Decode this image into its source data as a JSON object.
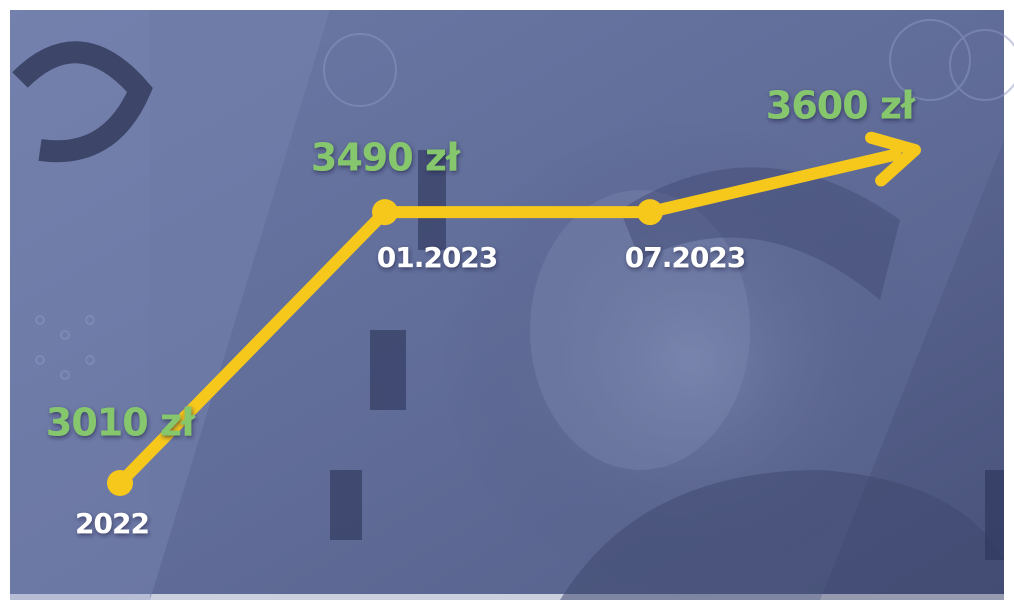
{
  "chart_data": {
    "type": "line",
    "categories": [
      "2022",
      "01.2023",
      "07.2023",
      null
    ],
    "values": [
      3010,
      3490,
      3490,
      3600
    ],
    "value_labels": [
      "3010 zł",
      "3490 zł",
      null,
      "3600 zł"
    ],
    "color": "#f6c81c",
    "label_color": "#86c76e",
    "category_color": "#ffffff"
  }
}
